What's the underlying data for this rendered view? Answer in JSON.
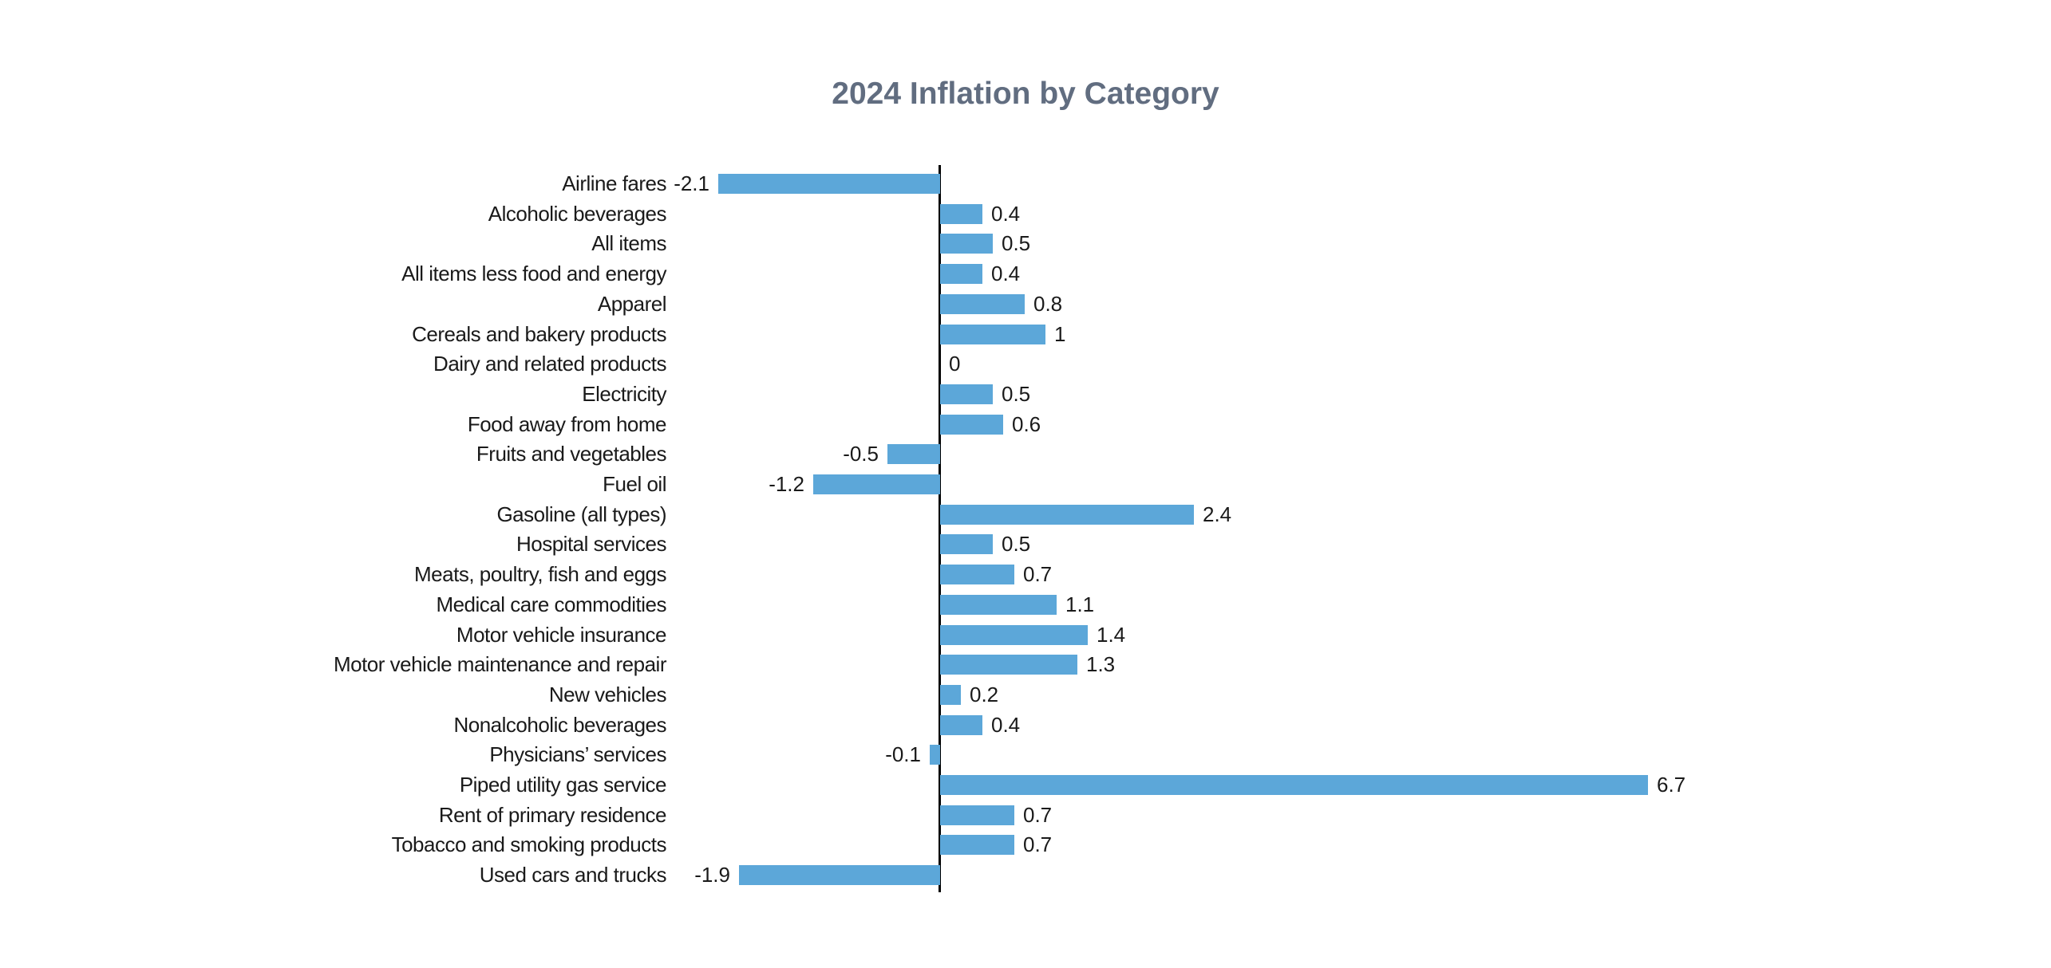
{
  "header": {
    "title": "2024 Inflation by Category"
  },
  "colors": {
    "background": "#FFFFFF",
    "bar": "#5CA7D9",
    "title_text": "#616D80",
    "label_text": "#1A1A1A",
    "axis_line": "#000000"
  },
  "chart_data": {
    "type": "bar",
    "orientation": "horizontal",
    "title": "2024 Inflation by Category",
    "xlabel": "",
    "ylabel": "",
    "grid": false,
    "legend": false,
    "zero_baseline_shown": true,
    "value_labels_shown": true,
    "xlim": [
      -2.8,
      7.6
    ],
    "categories": [
      "Airline fares",
      "Alcoholic beverages",
      "All items",
      "All items less food and energy",
      "Apparel",
      "Cereals and bakery products",
      "Dairy and related products",
      "Electricity",
      "Food away from home",
      "Fruits and vegetables",
      "Fuel oil",
      "Gasoline (all types)",
      "Hospital services",
      "Meats, poultry, fish and eggs",
      "Medical care commodities",
      "Motor vehicle insurance",
      "Motor vehicle maintenance and repair",
      "New vehicles",
      "Nonalcoholic beverages",
      "Physicians’ services",
      "Piped utility gas service",
      "Rent of primary residence",
      "Tobacco and smoking products",
      "Used cars and trucks"
    ],
    "values": [
      -2.1,
      0.4,
      0.5,
      0.4,
      0.8,
      1,
      0,
      0.5,
      0.6,
      -0.5,
      -1.2,
      2.4,
      0.5,
      0.7,
      1.1,
      1.4,
      1.3,
      0.2,
      0.4,
      -0.1,
      6.7,
      0.7,
      0.7,
      -1.9
    ],
    "value_labels": [
      "-2.1",
      "0.4",
      "0.5",
      "0.4",
      "0.8",
      "1",
      "0",
      "0.5",
      "0.6",
      "-0.5",
      "-1.2",
      "2.4",
      "0.5",
      "0.7",
      "1.1",
      "1.4",
      "1.3",
      "0.2",
      "0.4",
      "-0.1",
      "6.7",
      "0.7",
      "0.7",
      "-1.9"
    ]
  }
}
